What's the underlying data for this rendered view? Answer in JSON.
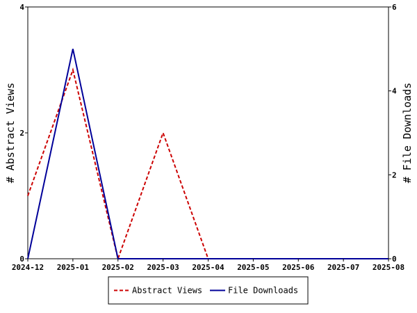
{
  "chart_data": {
    "type": "line",
    "x": [
      "2024-12",
      "2025-01",
      "2025-02",
      "2025-03",
      "2025-04",
      "2025-05",
      "2025-06",
      "2025-07",
      "2025-08"
    ],
    "left_axis": {
      "label": "# Abstract Views",
      "ylim": [
        0,
        4
      ],
      "ticks": [
        0,
        2,
        4
      ]
    },
    "right_axis": {
      "label": "# File Downloads",
      "ylim": [
        0,
        6
      ],
      "ticks": [
        0,
        2,
        4,
        6
      ]
    },
    "series": [
      {
        "name": "Abstract Views",
        "axis": "left",
        "color": "#cc0000",
        "dash": "dashed",
        "values": [
          1,
          3,
          0,
          2,
          0,
          0,
          0,
          0,
          0
        ]
      },
      {
        "name": "File Downloads",
        "axis": "right",
        "color": "#000099",
        "dash": "solid",
        "values": [
          0,
          5,
          0,
          0,
          0,
          0,
          0,
          0,
          0
        ]
      }
    ],
    "grid": false,
    "legend_position": "bottom-center"
  }
}
